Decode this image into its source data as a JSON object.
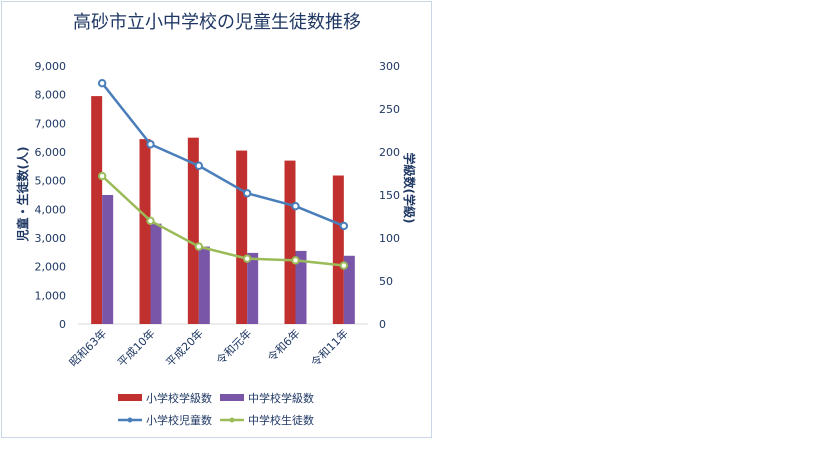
{
  "chart_data": {
    "type": "bar",
    "title": "高砂市立小中学校の児童生徒数推移",
    "categories": [
      "昭和63年",
      "平成10年",
      "平成20年",
      "令和元年",
      "令和6年",
      "令和11年"
    ],
    "ylabel_left": "児童・生徒数(人)",
    "ylabel_right": "学級数(学級)",
    "ylim_left": [
      0,
      9000
    ],
    "ylim_right": [
      0,
      300
    ],
    "yticks_left": [
      "0",
      "1,000",
      "2,000",
      "3,000",
      "4,000",
      "5,000",
      "6,000",
      "7,000",
      "8,000",
      "9,000"
    ],
    "yticks_right": [
      "0",
      "50",
      "100",
      "150",
      "200",
      "250",
      "300"
    ],
    "series": [
      {
        "name": "小学校学級数",
        "kind": "bar",
        "axis": "left",
        "color": "#c0302f",
        "values": [
          7950,
          6450,
          6500,
          6050,
          5700,
          5180
        ]
      },
      {
        "name": "中学校学級数",
        "kind": "bar",
        "axis": "left",
        "color": "#7a56a8",
        "values": [
          4500,
          3500,
          2700,
          2480,
          2550,
          2380
        ]
      },
      {
        "name": "小学校児童数",
        "kind": "line",
        "axis": "right",
        "color": "#4a7ebb",
        "values": [
          280,
          209,
          184,
          152,
          137,
          114
        ]
      },
      {
        "name": "中学校生徒数",
        "kind": "line",
        "axis": "right",
        "color": "#9bbb59",
        "values": [
          172,
          120,
          90,
          76,
          74,
          68
        ]
      }
    ],
    "legend_position": "bottom",
    "grid": false
  }
}
